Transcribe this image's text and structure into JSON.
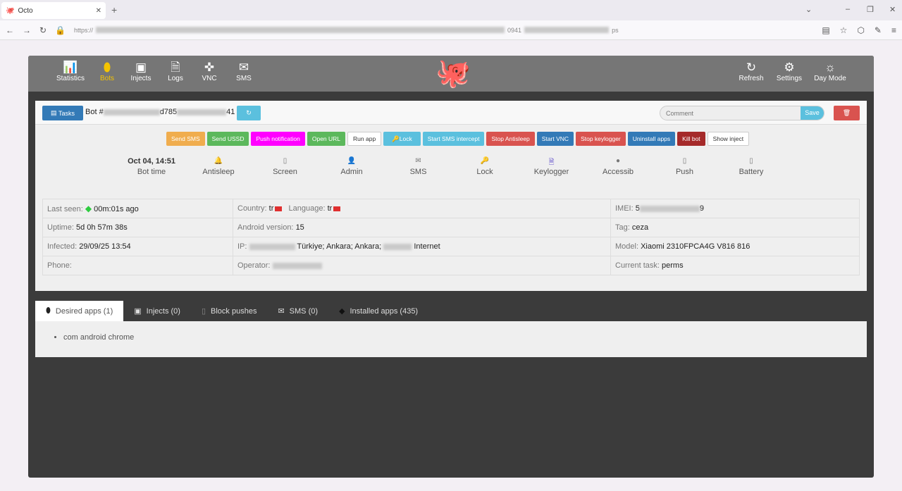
{
  "browser": {
    "tab_title": "Octo",
    "url_prefix": "https://",
    "url_fragment": "0941",
    "url_suffix": "ps"
  },
  "nav": {
    "left": [
      {
        "label": "Statistics",
        "icon": "bar-chart-icon"
      },
      {
        "label": "Bots",
        "icon": "android-icon",
        "active": true
      },
      {
        "label": "Injects",
        "icon": "money-icon"
      },
      {
        "label": "Logs",
        "icon": "file-icon"
      },
      {
        "label": "VNC",
        "icon": "crosshair-icon"
      },
      {
        "label": "SMS",
        "icon": "envelope-icon"
      }
    ],
    "right": [
      {
        "label": "Refresh",
        "icon": "refresh-icon"
      },
      {
        "label": "Settings",
        "icon": "gears-icon"
      },
      {
        "label": "Day Mode",
        "icon": "sun-icon"
      }
    ]
  },
  "bot": {
    "tasks_label": "Tasks",
    "id_prefix": "Bot #",
    "id_mid": "d785",
    "id_end": "41",
    "comment_placeholder": "Comment",
    "save_label": "Save"
  },
  "actions": [
    {
      "label": "Send SMS",
      "color": "#f0ad4e"
    },
    {
      "label": "Send USSD",
      "color": "#5cb85c"
    },
    {
      "label": "Push notification",
      "color": "#ff00ff"
    },
    {
      "label": "Open URL",
      "color": "#5cb85c"
    },
    {
      "label": "Run app",
      "color": "#ffffff"
    },
    {
      "label": "Lock",
      "color": "#5bc0de"
    },
    {
      "label": "Start SMS intercept",
      "color": "#5bc0de"
    },
    {
      "label": "Stop Antisleep",
      "color": "#d9534f"
    },
    {
      "label": "Start VNC",
      "color": "#337ab7"
    },
    {
      "label": "Stop keylogger",
      "color": "#d9534f"
    },
    {
      "label": "Uninstall apps",
      "color": "#337ab7"
    },
    {
      "label": "Kill bot",
      "color": "#a52a2a"
    },
    {
      "label": "Show inject",
      "color": "#ffffff"
    }
  ],
  "status": {
    "bot_time_value": "Oct 04, 14:51",
    "bot_time_label": "Bot time",
    "items": [
      {
        "label": "Antisleep",
        "icon": "bell-icon",
        "color": "#f0ad4e"
      },
      {
        "label": "Screen",
        "icon": "phone-icon",
        "color": "#777"
      },
      {
        "label": "Admin",
        "icon": "user-icon",
        "color": "#777"
      },
      {
        "label": "SMS",
        "icon": "envelope-icon",
        "color": "#777"
      },
      {
        "label": "Lock",
        "icon": "key-icon",
        "color": "#777"
      },
      {
        "label": "Keylogger",
        "icon": "file-icon",
        "color": "#6a5acd"
      },
      {
        "label": "Accessib",
        "icon": "info-icon",
        "color": "#777"
      },
      {
        "label": "Push",
        "icon": "push-icon",
        "color": "#777"
      },
      {
        "label": "Battery",
        "icon": "battery-icon",
        "color": "#777"
      }
    ]
  },
  "info": {
    "last_seen_label": "Last seen:",
    "last_seen": "00m:01s ago",
    "country_label": "Country:",
    "country": "tr",
    "language_label": "Language:",
    "language": "tr",
    "imei_label": "IMEI:",
    "imei_start": "5",
    "imei_end": "9",
    "uptime_label": "Uptime:",
    "uptime": "5d 0h 57m 38s",
    "android_label": "Android version:",
    "android": "15",
    "tag_label": "Tag:",
    "tag": "ceza",
    "infected_label": "Infected:",
    "infected": "29/09/25 13:54",
    "ip_label": "IP:",
    "location": "Türkiye; Ankara; Ankara;",
    "isp_suffix": "Internet",
    "model_label": "Model:",
    "model": "Xiaomi 2310FPCA4G V816 816",
    "phone_label": "Phone:",
    "operator_label": "Operator:",
    "task_label": "Current task:",
    "task": "perms"
  },
  "tabs": [
    {
      "label": "Desired apps (1)",
      "icon": "android-icon",
      "active": true
    },
    {
      "label": "Injects (0)",
      "icon": "money-icon"
    },
    {
      "label": "Block pushes",
      "icon": "push-icon"
    },
    {
      "label": "SMS (0)",
      "icon": "envelope-icon"
    },
    {
      "label": "Installed apps (435)",
      "icon": "android-icon"
    }
  ],
  "desired_apps": [
    "com android chrome"
  ]
}
